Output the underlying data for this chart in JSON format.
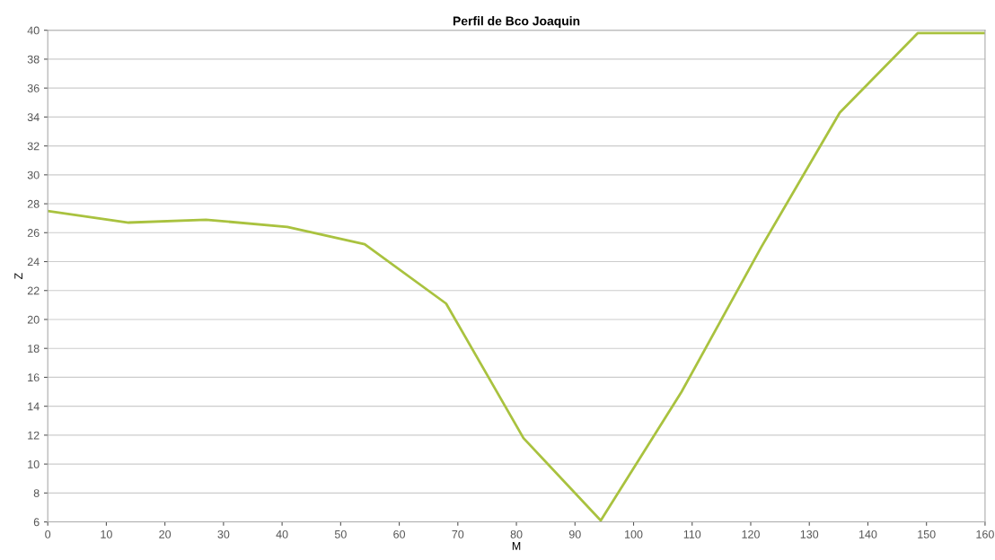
{
  "chart_data": {
    "type": "line",
    "title": "Perfil de Bco Joaquin",
    "xlabel": "M",
    "ylabel": "Z",
    "x": [
      0,
      13.8,
      27,
      40.9,
      54.1,
      68,
      81.2,
      94.4,
      108.2,
      121.8,
      135.2,
      148.5,
      160
    ],
    "series": [
      {
        "color": "#a9c23f",
        "values": [
          27.5,
          26.7,
          26.9,
          26.4,
          25.2,
          21.1,
          11.8,
          6.1,
          15,
          25,
          34.3,
          39.8,
          39.8
        ]
      }
    ],
    "xlim": [
      0,
      160
    ],
    "xticks": [
      0,
      10,
      20,
      30,
      40,
      50,
      60,
      70,
      80,
      90,
      100,
      110,
      120,
      130,
      140,
      150,
      160
    ],
    "ylim": [
      6,
      40
    ],
    "yticks": [
      6,
      8,
      10,
      12,
      14,
      16,
      18,
      20,
      22,
      24,
      26,
      28,
      30,
      32,
      34,
      36,
      38,
      40
    ],
    "grid": "y",
    "legend": false,
    "marker": "none",
    "line_style": "solid"
  }
}
